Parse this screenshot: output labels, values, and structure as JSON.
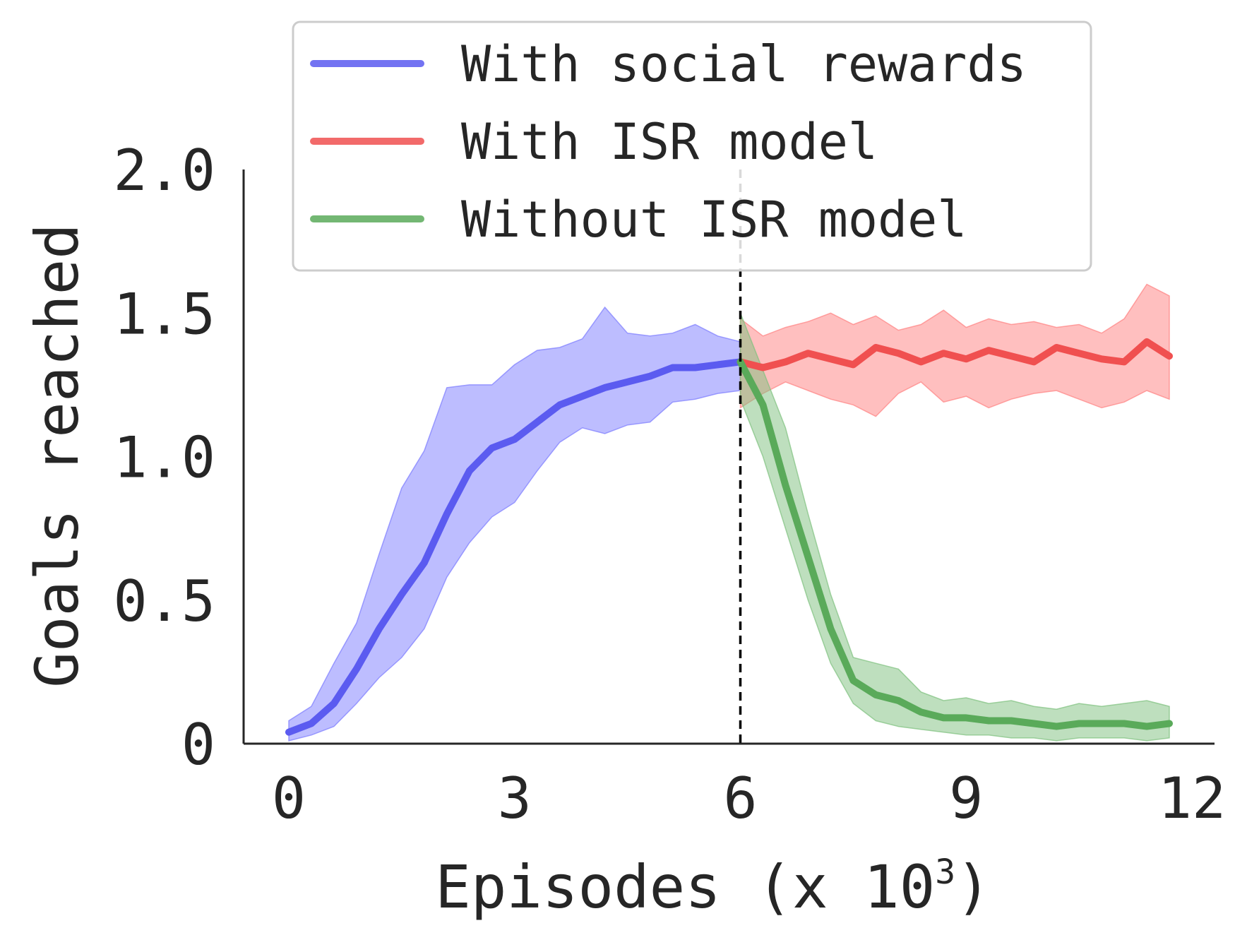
{
  "chart_data": {
    "type": "line",
    "title": "",
    "xlabel": "Episodes (x 10",
    "xlabel_sup": "3",
    "xlabel_end": ")",
    "ylabel": "Goals reached",
    "xlim": [
      -0.6,
      12.3
    ],
    "ylim": [
      0,
      2.0
    ],
    "xticks": [
      0,
      3,
      6,
      9,
      12
    ],
    "xtick_labels": [
      "0",
      "3",
      "6",
      "9",
      "12"
    ],
    "yticks": [
      0,
      0.5,
      1.0,
      1.5,
      2.0
    ],
    "ytick_labels": [
      "0",
      "0.5",
      "1.0",
      "1.5",
      "2.0"
    ],
    "grid": false,
    "legend_position": "top",
    "vline": {
      "x": 6.0,
      "style": "dashed",
      "color": "#000000"
    },
    "series": [
      {
        "name": "With social rewards",
        "color": "#5b5bf0",
        "band_color": "#7b7bff",
        "x": [
          0.0,
          0.3,
          0.6,
          0.9,
          1.2,
          1.5,
          1.8,
          2.1,
          2.4,
          2.7,
          3.0,
          3.3,
          3.6,
          3.9,
          4.2,
          4.5,
          4.8,
          5.1,
          5.4,
          5.7,
          6.0
        ],
        "values": [
          0.04,
          0.07,
          0.14,
          0.26,
          0.4,
          0.52,
          0.63,
          0.8,
          0.95,
          1.03,
          1.06,
          1.12,
          1.18,
          1.21,
          1.24,
          1.26,
          1.28,
          1.31,
          1.31,
          1.32,
          1.33
        ],
        "lower": [
          0.01,
          0.03,
          0.06,
          0.14,
          0.23,
          0.3,
          0.4,
          0.58,
          0.7,
          0.79,
          0.84,
          0.95,
          1.05,
          1.1,
          1.08,
          1.11,
          1.12,
          1.19,
          1.2,
          1.22,
          1.23
        ],
        "upper": [
          0.08,
          0.13,
          0.28,
          0.42,
          0.66,
          0.89,
          1.02,
          1.24,
          1.25,
          1.25,
          1.32,
          1.37,
          1.38,
          1.41,
          1.52,
          1.43,
          1.42,
          1.43,
          1.46,
          1.42,
          1.4
        ]
      },
      {
        "name": "With ISR model",
        "color": "#f05050",
        "band_color": "#ff8080",
        "x": [
          6.0,
          6.3,
          6.6,
          6.9,
          7.2,
          7.5,
          7.8,
          8.1,
          8.4,
          8.7,
          9.0,
          9.3,
          9.6,
          9.9,
          10.2,
          10.5,
          10.8,
          11.1,
          11.4,
          11.7
        ],
        "values": [
          1.33,
          1.31,
          1.33,
          1.36,
          1.34,
          1.32,
          1.38,
          1.36,
          1.33,
          1.36,
          1.34,
          1.37,
          1.35,
          1.33,
          1.38,
          1.36,
          1.34,
          1.33,
          1.4,
          1.35
        ],
        "lower": [
          1.17,
          1.22,
          1.26,
          1.23,
          1.2,
          1.18,
          1.14,
          1.22,
          1.26,
          1.19,
          1.21,
          1.17,
          1.2,
          1.22,
          1.23,
          1.2,
          1.17,
          1.19,
          1.23,
          1.2
        ],
        "upper": [
          1.48,
          1.42,
          1.45,
          1.47,
          1.5,
          1.46,
          1.49,
          1.44,
          1.46,
          1.51,
          1.45,
          1.48,
          1.46,
          1.47,
          1.45,
          1.46,
          1.43,
          1.48,
          1.6,
          1.56
        ]
      },
      {
        "name": "Without ISR model",
        "color": "#5aaa5a",
        "band_color": "#7ec07e",
        "x": [
          6.0,
          6.3,
          6.6,
          6.9,
          7.2,
          7.5,
          7.8,
          8.1,
          8.4,
          8.7,
          9.0,
          9.3,
          9.6,
          9.9,
          10.2,
          10.5,
          10.8,
          11.1,
          11.4,
          11.7
        ],
        "values": [
          1.33,
          1.18,
          0.9,
          0.65,
          0.4,
          0.22,
          0.17,
          0.15,
          0.11,
          0.09,
          0.09,
          0.08,
          0.08,
          0.07,
          0.06,
          0.07,
          0.07,
          0.07,
          0.06,
          0.07
        ],
        "lower": [
          1.2,
          1.0,
          0.75,
          0.5,
          0.28,
          0.14,
          0.08,
          0.06,
          0.05,
          0.04,
          0.03,
          0.03,
          0.02,
          0.02,
          0.01,
          0.02,
          0.02,
          0.02,
          0.01,
          0.02
        ],
        "upper": [
          1.5,
          1.3,
          1.1,
          0.8,
          0.52,
          0.3,
          0.28,
          0.26,
          0.18,
          0.15,
          0.16,
          0.14,
          0.15,
          0.13,
          0.12,
          0.14,
          0.13,
          0.14,
          0.15,
          0.13
        ]
      }
    ]
  }
}
